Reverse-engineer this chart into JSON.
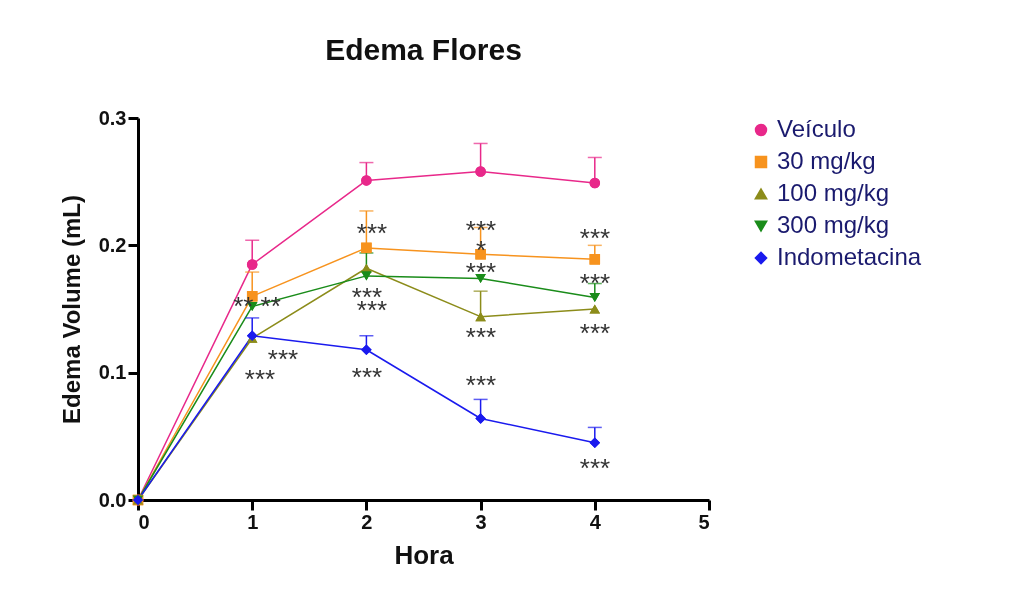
{
  "chart_data": {
    "type": "line",
    "title": "Edema Flores",
    "xlabel": "Hora",
    "ylabel": "Edema Volume (mL)",
    "x": [
      0,
      1,
      2,
      3,
      4
    ],
    "xlim": [
      0,
      5
    ],
    "xticks": [
      0,
      1,
      2,
      3,
      4,
      5
    ],
    "ylim": [
      0,
      0.3
    ],
    "yticks": [
      {
        "value": 0,
        "label": "0.0"
      },
      0.1,
      0.2,
      0.3
    ],
    "legend": "right",
    "grid": false,
    "series": [
      {
        "name": "Veículo",
        "color": "#e8288a",
        "marker": "circle",
        "values": [
          0,
          0.185,
          0.251,
          0.258,
          0.249
        ],
        "errors": [
          null,
          [
            0.185,
            0.204
          ],
          [
            0.251,
            0.265
          ],
          [
            0.258,
            0.28
          ],
          [
            0.249,
            0.269
          ]
        ]
      },
      {
        "name": "30 mg/kg",
        "color": "#f7931e",
        "marker": "square",
        "values": [
          0,
          0.16,
          0.198,
          0.193,
          0.189
        ],
        "errors": [
          null,
          [
            0.16,
            0.179
          ],
          [
            0.198,
            0.227
          ],
          [
            0.193,
            0.214
          ],
          [
            0.189,
            0.2
          ]
        ]
      },
      {
        "name": "100 mg/kg",
        "color": "#8c8c1a",
        "marker": "triangle",
        "values": [
          0,
          0.127,
          0.182,
          0.144,
          0.15
        ],
        "errors": [
          null,
          null,
          null,
          [
            0.144,
            0.164
          ],
          null
        ]
      },
      {
        "name": "300 mg/kg",
        "color": "#1a8c1a",
        "marker": "triangle-down",
        "values": [
          0,
          0.152,
          0.176,
          0.174,
          0.159
        ],
        "errors": [
          null,
          null,
          [
            0.176,
            0.194
          ],
          null,
          [
            0.159,
            0.17
          ]
        ]
      },
      {
        "name": "Indometacina",
        "color": "#1a1aee",
        "marker": "diamond",
        "values": [
          0,
          0.129,
          0.118,
          0.064,
          0.045
        ],
        "errors": [
          null,
          [
            0.129,
            0.143
          ],
          [
            0.118,
            0.129
          ],
          [
            0.064,
            0.079
          ],
          [
            0.045,
            0.057
          ]
        ]
      }
    ],
    "annotations": [
      "** **",
      "***",
      "***",
      "***",
      "***",
      "***",
      "***",
      "***",
      "*",
      "***",
      "***",
      "***",
      "***",
      "***",
      "***",
      "***"
    ]
  }
}
